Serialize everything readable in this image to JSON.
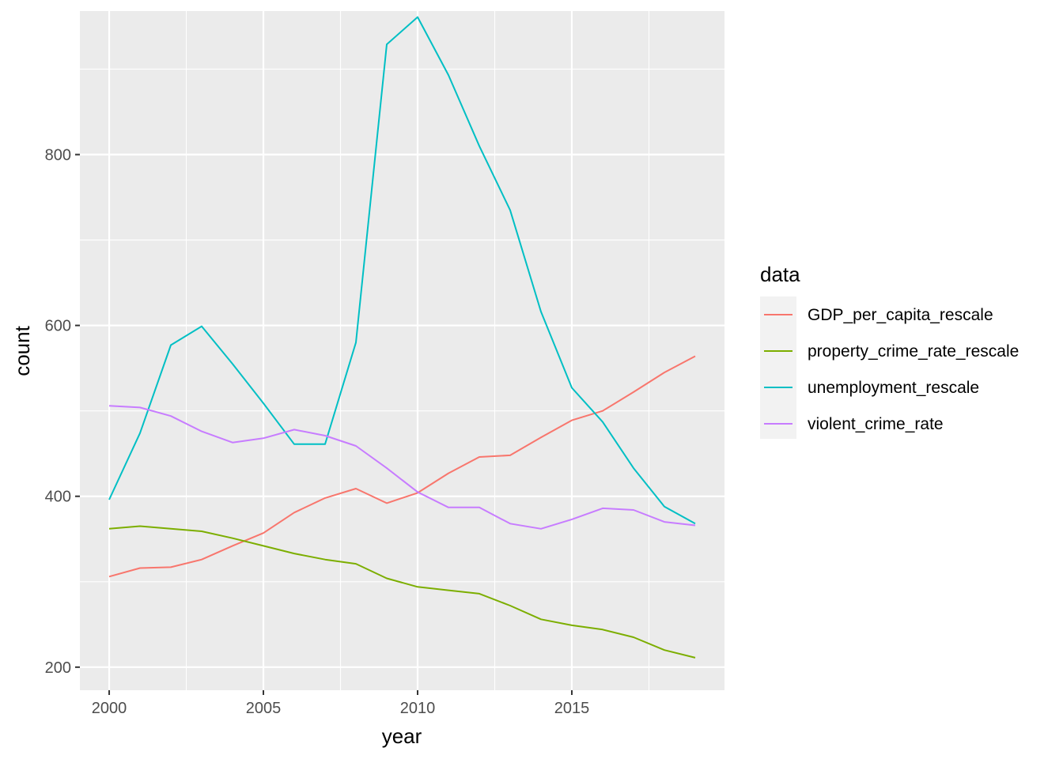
{
  "chart_data": {
    "type": "line",
    "xlabel": "year",
    "ylabel": "count",
    "xlim": [
      1999.05,
      2019.95
    ],
    "ylim": [
      173,
      968
    ],
    "x_ticks": [
      2000,
      2005,
      2010,
      2015
    ],
    "y_ticks": [
      200,
      400,
      600,
      800
    ],
    "grid": true,
    "legend_title": "data",
    "legend_position": "right",
    "x": [
      2000,
      2001,
      2002,
      2003,
      2004,
      2005,
      2006,
      2007,
      2008,
      2009,
      2010,
      2011,
      2012,
      2013,
      2014,
      2015,
      2016,
      2017,
      2018,
      2019
    ],
    "series": [
      {
        "name": "GDP_per_capita_rescale",
        "color": "#F8766D",
        "values": [
          306,
          316,
          317,
          326,
          342,
          357,
          381,
          398,
          409,
          392,
          404,
          427,
          446,
          448,
          469,
          489,
          500,
          522,
          545,
          564
        ]
      },
      {
        "name": "property_crime_rate_rescale",
        "color": "#7CAE00",
        "values": [
          362,
          365,
          362,
          359,
          351,
          342,
          333,
          326,
          321,
          304,
          294,
          290,
          286,
          272,
          256,
          249,
          244,
          235,
          220,
          211
        ]
      },
      {
        "name": "unemployment_rescale",
        "color": "#00BFC4",
        "values": [
          396,
          474,
          577,
          599,
          555,
          509,
          461,
          461,
          580,
          929,
          961,
          893,
          810,
          735,
          616,
          527,
          487,
          433,
          388,
          368
        ]
      },
      {
        "name": "violent_crime_rate",
        "color": "#C77CFF",
        "values": [
          506,
          504,
          494,
          476,
          463,
          468,
          478,
          471,
          459,
          433,
          405,
          387,
          387,
          368,
          362,
          373,
          386,
          384,
          370,
          366
        ]
      }
    ]
  }
}
